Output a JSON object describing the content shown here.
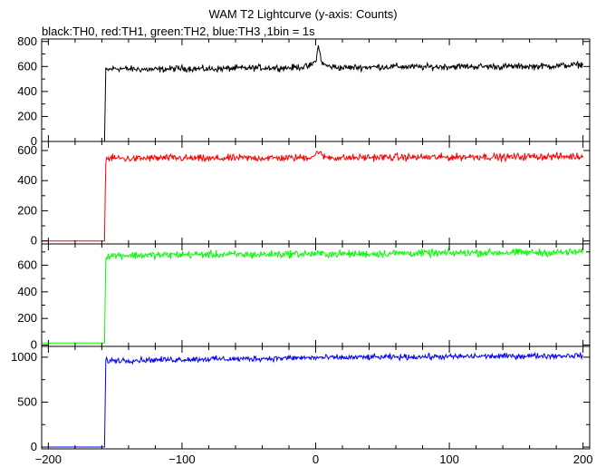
{
  "chart_data": {
    "type": "line",
    "title": "WAM T2 Lightcurve (y-axis: Counts)",
    "subtitle": "black:TH0, red:TH1, green:TH2, blue:TH3 ,1bin = 1s",
    "xlabel": "",
    "ylabel": "",
    "xlim": [
      -205,
      205
    ],
    "x_ticks": [
      -200,
      -100,
      0,
      100,
      200
    ],
    "grid": false,
    "panels": [
      {
        "color": "#000000",
        "ylim": [
          0,
          820
        ],
        "y_ticks": [
          0,
          200,
          400,
          600,
          800
        ],
        "series": [
          {
            "x": [
              -205,
              -158,
              -157,
              -150,
              -140,
              -120,
              -100,
              -80,
              -60,
              -40,
              -20,
              -5,
              0,
              2,
              5,
              10,
              20,
              40,
              60,
              80,
              100,
              120,
              140,
              160,
              180,
              200
            ],
            "values": [
              0,
              0,
              570,
              585,
              580,
              575,
              585,
              580,
              585,
              590,
              590,
              600,
              640,
              760,
              620,
              600,
              590,
              595,
              600,
              595,
              600,
              600,
              600,
              600,
              605,
              615
            ]
          }
        ]
      },
      {
        "color": "#ff0000",
        "ylim": [
          -20,
          660
        ],
        "y_ticks": [
          0,
          200,
          400,
          600
        ],
        "series": [
          {
            "x": [
              -205,
              -158,
              -157,
              -150,
              -140,
              -120,
              -100,
              -80,
              -60,
              -40,
              -20,
              -5,
              0,
              2,
              5,
              10,
              20,
              40,
              60,
              80,
              100,
              120,
              140,
              160,
              180,
              200
            ],
            "values": [
              0,
              0,
              545,
              550,
              545,
              550,
              550,
              545,
              550,
              550,
              550,
              555,
              570,
              600,
              560,
              555,
              550,
              555,
              555,
              555,
              555,
              560,
              555,
              560,
              560,
              560
            ]
          }
        ]
      },
      {
        "color": "#00ff00",
        "ylim": [
          -10,
          760
        ],
        "y_ticks": [
          0,
          200,
          400,
          600
        ],
        "series": [
          {
            "x": [
              -205,
              -158,
              -157,
              -150,
              -140,
              -120,
              -100,
              -80,
              -60,
              -40,
              -20,
              0,
              20,
              40,
              60,
              80,
              100,
              120,
              140,
              160,
              180,
              200
            ],
            "values": [
              15,
              15,
              670,
              675,
              675,
              675,
              680,
              680,
              680,
              680,
              685,
              685,
              685,
              685,
              690,
              690,
              690,
              695,
              695,
              695,
              695,
              700
            ]
          }
        ]
      },
      {
        "color": "#0000ff",
        "ylim": [
          -20,
          1120
        ],
        "y_ticks": [
          0,
          500,
          1000
        ],
        "series": [
          {
            "x": [
              -205,
              -158,
              -157,
              -150,
              -140,
              -120,
              -100,
              -80,
              -60,
              -40,
              -20,
              0,
              20,
              40,
              60,
              80,
              100,
              120,
              140,
              160,
              180,
              200
            ],
            "values": [
              0,
              0,
              960,
              965,
              965,
              970,
              975,
              980,
              980,
              985,
              990,
              995,
              995,
              1000,
              1000,
              1005,
              1005,
              1010,
              1010,
              1015,
              1015,
              1020
            ]
          }
        ]
      }
    ]
  }
}
